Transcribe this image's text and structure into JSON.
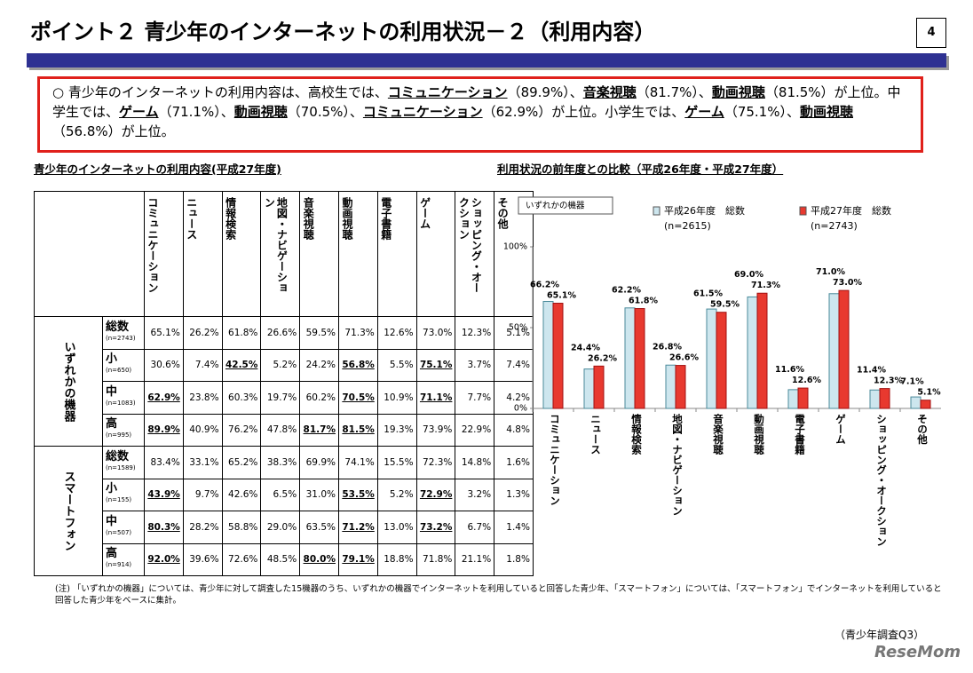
{
  "header": {
    "title": "ポイント２ 青少年のインターネットの利用状況－２（利用内容）",
    "page": "4"
  },
  "summary": {
    "segments": [
      "○ 青少年のインターネットの利用内容は、高校生では、",
      {
        "text": "コミュニケーション",
        "em": true
      },
      "（89.9%）、",
      {
        "text": "音楽視聴",
        "em": true
      },
      "（81.7%）、",
      {
        "text": "動画視聴",
        "em": true
      },
      "（81.5%）が上位。中学生では、",
      {
        "text": "ゲーム",
        "em": true
      },
      "（71.1%）、",
      {
        "text": "動画視聴",
        "em": true
      },
      "（70.5%）、",
      {
        "text": "コミュニケーション",
        "em": true
      },
      "（62.9%）が上位。小学生では、",
      {
        "text": "ゲーム",
        "em": true
      },
      "（75.1%）、",
      {
        "text": "動画視聴",
        "em": true
      },
      "（56.8%）が上位。"
    ]
  },
  "table": {
    "title": "青少年のインターネットの利用内容(平成27年度)",
    "columns": [
      "コミュニケーション",
      "ニュース",
      "情報検索",
      "地図・ナビゲーション",
      "音楽視聴",
      "動画視聴",
      "電子書籍",
      "ゲーム",
      "ショッピング・オークション",
      "その他"
    ],
    "groups": [
      {
        "label": "いずれかの機器",
        "rows": [
          {
            "label": "総数",
            "n": "(n=2743)",
            "cells": [
              "65.1%",
              "26.2%",
              "61.8%",
              "26.6%",
              "59.5%",
              "71.3%",
              "12.6%",
              "73.0%",
              "12.3%",
              "5.1%"
            ]
          },
          {
            "label": "小",
            "n": "(n=650)",
            "cells": [
              "30.6%",
              "7.4%",
              {
                "text": "42.5%",
                "em": true
              },
              "5.2%",
              "24.2%",
              {
                "text": "56.8%",
                "em": true
              },
              "5.5%",
              {
                "text": "75.1%",
                "em": true
              },
              "3.7%",
              "7.4%"
            ]
          },
          {
            "label": "中",
            "n": "(n=1083)",
            "cells": [
              {
                "text": "62.9%",
                "em": true
              },
              "23.8%",
              "60.3%",
              "19.7%",
              "60.2%",
              {
                "text": "70.5%",
                "em": true
              },
              "10.9%",
              {
                "text": "71.1%",
                "em": true
              },
              "7.7%",
              "4.2%"
            ]
          },
          {
            "label": "高",
            "n": "(n=995)",
            "cells": [
              {
                "text": "89.9%",
                "em": true
              },
              "40.9%",
              "76.2%",
              "47.8%",
              {
                "text": "81.7%",
                "em": true
              },
              {
                "text": "81.5%",
                "em": true
              },
              "19.3%",
              "73.9%",
              "22.9%",
              "4.8%"
            ]
          }
        ]
      },
      {
        "label": "スマートフォン",
        "rows": [
          {
            "label": "総数",
            "n": "(n=1589)",
            "cells": [
              "83.4%",
              "33.1%",
              "65.2%",
              "38.3%",
              "69.9%",
              "74.1%",
              "15.5%",
              "72.3%",
              "14.8%",
              "1.6%"
            ]
          },
          {
            "label": "小",
            "n": "(n=155)",
            "cells": [
              {
                "text": "43.9%",
                "em": true
              },
              "9.7%",
              "42.6%",
              "6.5%",
              "31.0%",
              {
                "text": "53.5%",
                "em": true
              },
              "5.2%",
              {
                "text": "72.9%",
                "em": true
              },
              "3.2%",
              "1.3%"
            ]
          },
          {
            "label": "中",
            "n": "(n=507)",
            "cells": [
              {
                "text": "80.3%",
                "em": true
              },
              "28.2%",
              "58.8%",
              "29.0%",
              "63.5%",
              {
                "text": "71.2%",
                "em": true
              },
              "13.0%",
              {
                "text": "73.2%",
                "em": true
              },
              "6.7%",
              "1.4%"
            ]
          },
          {
            "label": "高",
            "n": "(n=914)",
            "cells": [
              {
                "text": "92.0%",
                "em": true
              },
              "39.6%",
              "72.6%",
              "48.5%",
              {
                "text": "80.0%",
                "em": true
              },
              {
                "text": "79.1%",
                "em": true
              },
              "18.8%",
              "71.8%",
              "21.1%",
              "1.8%"
            ]
          }
        ]
      }
    ]
  },
  "chart_data": {
    "type": "bar",
    "title": "利用状況の前年度との比較（平成26年度・平成27年度）",
    "panel_label": "いずれかの機器",
    "categories": [
      "コミュニケーション",
      "ニュース",
      "情報検索",
      "地図・ナビゲーション",
      "音楽視聴",
      "動画視聴",
      "電子書籍",
      "ゲーム",
      "ショッピング・オークション",
      "その他"
    ],
    "series": [
      {
        "name": "平成26年度　総数",
        "note": "(n=2615)",
        "color": "#cde6ee",
        "values": [
          66.2,
          24.4,
          62.2,
          26.8,
          61.5,
          69.0,
          11.6,
          71.0,
          11.4,
          7.1
        ],
        "value_labels": [
          "66.2%",
          "24.4%",
          "62.2%",
          "26.8%",
          "61.5%",
          "69.0%",
          "11.6%",
          "71.0%",
          "11.4%",
          "7.1%"
        ]
      },
      {
        "name": "平成27年度　総数",
        "note": "(n=2743)",
        "color": "#e8392f",
        "values": [
          65.1,
          26.2,
          61.8,
          26.6,
          59.5,
          71.3,
          12.6,
          73.0,
          12.3,
          5.1
        ],
        "value_labels": [
          "65.1%",
          "26.2%",
          "61.8%",
          "26.6%",
          "59.5%",
          "71.3%",
          "12.6%",
          "73.0%",
          "12.3%",
          "5.1%"
        ]
      }
    ],
    "ylim": [
      0,
      100
    ],
    "yticks": [
      {
        "value": 0,
        "label": "0%"
      },
      {
        "value": 50,
        "label": "50%"
      },
      {
        "value": 100,
        "label": "100%"
      }
    ]
  },
  "footnote": "(注) 「いずれかの機器」については、青少年に対して調査した15機器のうち、いずれかの機器でインターネットを利用していると回答した青少年、「スマートフォン」については、「スマートフォン」でインターネットを利用していると回答した青少年をベースに集計。",
  "source": "（青少年調査Q3）",
  "logo": "ReseMom"
}
